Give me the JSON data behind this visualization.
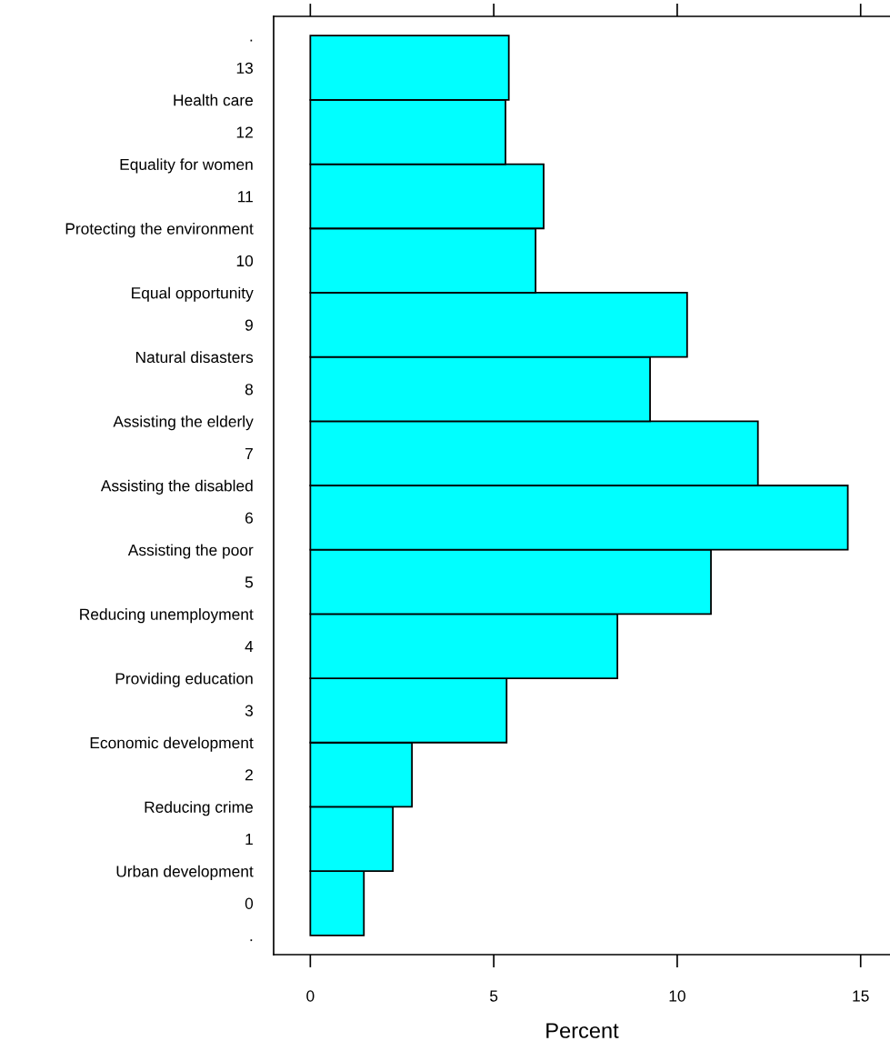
{
  "chart_data": {
    "type": "histogram",
    "orientation": "horizontal",
    "xlabel": "Percent",
    "bins": [
      -0.5,
      0.5,
      1.5,
      2.5,
      3.5,
      4.5,
      5.5,
      6.5,
      7.5,
      8.5,
      9.5,
      10.5,
      11.5,
      12.5,
      13.5
    ],
    "values": [
      1.46,
      2.25,
      2.77,
      5.35,
      8.37,
      10.92,
      14.65,
      12.2,
      9.26,
      10.27,
      6.14,
      6.36,
      5.32,
      5.41
    ],
    "color": "#00ffff",
    "xlim": [
      -1,
      15.8
    ],
    "xticks": [
      0,
      5,
      10,
      15
    ],
    "ylim": [
      -0.8,
      13.8
    ],
    "yticks": [
      {
        "value": -0.5,
        "label": "."
      },
      {
        "value": 0,
        "label": "0"
      },
      {
        "value": 0.5,
        "label": "Urban development"
      },
      {
        "value": 1,
        "label": "1"
      },
      {
        "value": 1.5,
        "label": "Reducing crime"
      },
      {
        "value": 2,
        "label": "2"
      },
      {
        "value": 2.5,
        "label": "Economic development"
      },
      {
        "value": 3,
        "label": "3"
      },
      {
        "value": 3.5,
        "label": "Providing education"
      },
      {
        "value": 4,
        "label": "4"
      },
      {
        "value": 4.5,
        "label": "Reducing unemployment"
      },
      {
        "value": 5,
        "label": "5"
      },
      {
        "value": 5.5,
        "label": "Assisting the poor"
      },
      {
        "value": 6,
        "label": "6"
      },
      {
        "value": 6.5,
        "label": "Assisting the disabled"
      },
      {
        "value": 7,
        "label": "7"
      },
      {
        "value": 7.5,
        "label": "Assisting the elderly"
      },
      {
        "value": 8,
        "label": "8"
      },
      {
        "value": 8.5,
        "label": "Natural disasters"
      },
      {
        "value": 9,
        "label": "9"
      },
      {
        "value": 9.5,
        "label": "Equal opportunity"
      },
      {
        "value": 10,
        "label": "10"
      },
      {
        "value": 10.5,
        "label": "Protecting the environment"
      },
      {
        "value": 11,
        "label": "11"
      },
      {
        "value": 11.5,
        "label": "Equality for women"
      },
      {
        "value": 12,
        "label": "12"
      },
      {
        "value": 12.5,
        "label": "Health care"
      },
      {
        "value": 13,
        "label": "13"
      },
      {
        "value": 13.5,
        "label": "."
      }
    ],
    "grid": false
  }
}
